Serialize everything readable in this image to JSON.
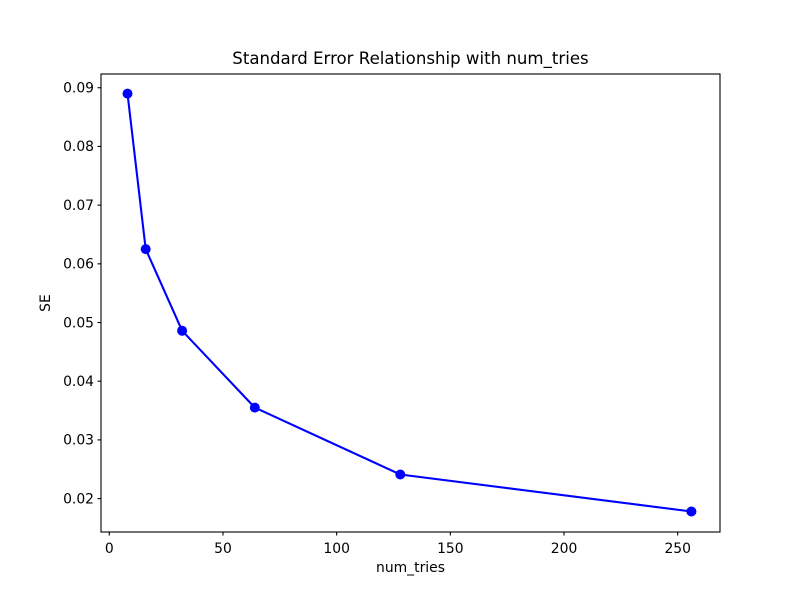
{
  "figure": {
    "background_color": "#ffffff",
    "text_color": "#000000",
    "spine_color": "#000000"
  },
  "chart_data": {
    "type": "line",
    "title": "Standard Error Relationship with num_tries",
    "xlabel": "num_tries",
    "ylabel": "SE",
    "x": [
      8,
      16,
      32,
      64,
      128,
      256
    ],
    "y": [
      0.089,
      0.0625,
      0.0486,
      0.0355,
      0.0241,
      0.0178
    ],
    "line_color": "#0000ff",
    "marker": "circle",
    "xlim": [
      -3.65,
      268.6
    ],
    "ylim": [
      0.01431,
      0.09234
    ],
    "xticks": [
      0,
      50,
      100,
      150,
      200,
      250
    ],
    "yticks": [
      0.02,
      0.03,
      0.04,
      0.05,
      0.06,
      0.07,
      0.08,
      0.09
    ],
    "y_tick_format_decimals": 2,
    "grid": false,
    "legend_position": "none"
  }
}
